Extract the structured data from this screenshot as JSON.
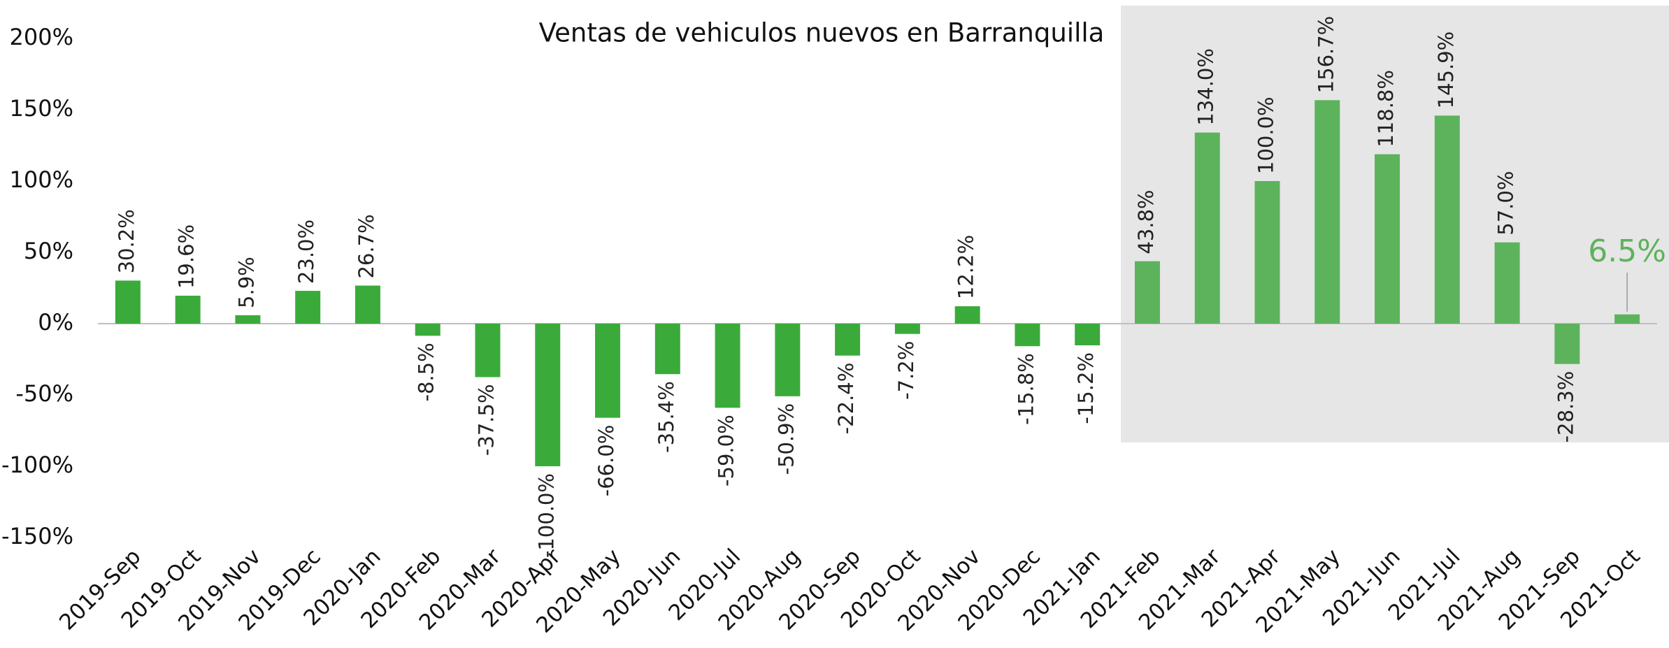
{
  "chart_data": {
    "type": "bar",
    "title": "Ventas de vehiculos nuevos en Barranquilla",
    "categories": [
      "2019-Sep",
      "2019-Oct",
      "2019-Nov",
      "2019-Dec",
      "2020-Jan",
      "2020-Feb",
      "2020-Mar",
      "2020-Apr",
      "2020-May",
      "2020-Jun",
      "2020-Jul",
      "2020-Aug",
      "2020-Sep",
      "2020-Oct",
      "2020-Nov",
      "2020-Dec",
      "2021-Jan",
      "2021-Feb",
      "2021-Mar",
      "2021-Apr",
      "2021-May",
      "2021-Jun",
      "2021-Jul",
      "2021-Aug",
      "2021-Sep",
      "2021-Oct"
    ],
    "values": [
      30.2,
      19.6,
      5.9,
      23.0,
      26.7,
      -8.5,
      -37.5,
      -100.0,
      -66.0,
      -35.4,
      -59.0,
      -50.9,
      -22.4,
      -7.2,
      12.2,
      -15.8,
      -15.2,
      43.8,
      134.0,
      100.0,
      156.7,
      118.8,
      145.9,
      57.0,
      -28.3,
      6.5
    ],
    "value_labels": [
      "30.2%",
      "19.6%",
      "5.9%",
      "23.0%",
      "26.7%",
      "-8.5%",
      "-37.5%",
      "-100.0%",
      "-66.0%",
      "-35.4%",
      "-59.0%",
      "-50.9%",
      "-22.4%",
      "-7.2%",
      "12.2%",
      "-15.8%",
      "-15.2%",
      "43.8%",
      "134.0%",
      "100.0%",
      "156.7%",
      "118.8%",
      "145.9%",
      "57.0%",
      "-28.3%",
      "6.5%"
    ],
    "colors": [
      "#3aab3a",
      "#3aab3a",
      "#3aab3a",
      "#3aab3a",
      "#3aab3a",
      "#3aab3a",
      "#3aab3a",
      "#3aab3a",
      "#3aab3a",
      "#3aab3a",
      "#3aab3a",
      "#3aab3a",
      "#3aab3a",
      "#3aab3a",
      "#3aab3a",
      "#3aab3a",
      "#3aab3a",
      "#5cb35c",
      "#5cb35c",
      "#5cb35c",
      "#5cb35c",
      "#5cb35c",
      "#5cb35c",
      "#5cb35c",
      "#5cb35c",
      "#5cb35c"
    ],
    "ylim": [
      -150,
      200
    ],
    "yticks": [
      {
        "value": -150,
        "label": "-150%"
      },
      {
        "value": -100,
        "label": "-100%"
      },
      {
        "value": -50,
        "label": "-50%"
      },
      {
        "value": 0,
        "label": "0%"
      },
      {
        "value": 50,
        "label": "50%"
      },
      {
        "value": 100,
        "label": "100%"
      },
      {
        "value": 150,
        "label": "150%"
      },
      {
        "value": 200,
        "label": "200%"
      }
    ],
    "grid": false
  }
}
